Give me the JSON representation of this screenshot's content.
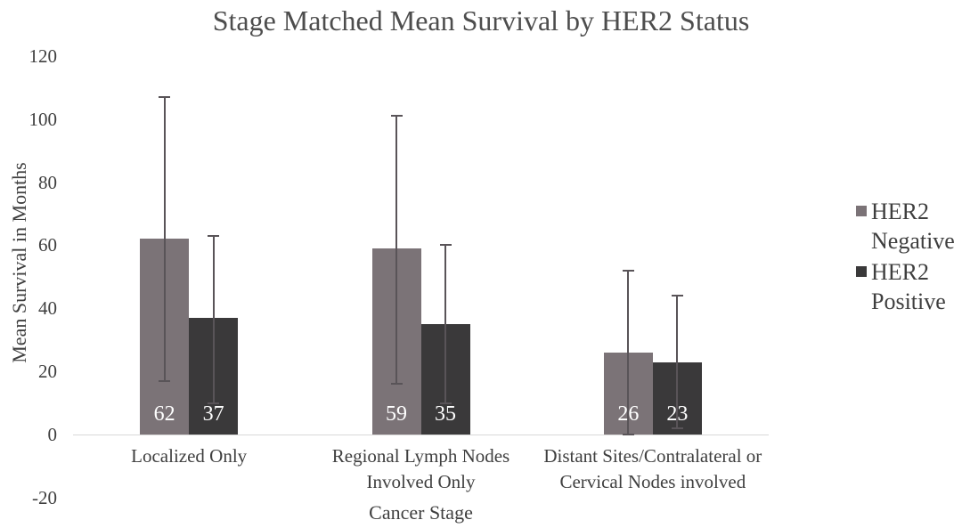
{
  "chart_data": {
    "type": "bar",
    "title": "Stage Matched Mean Survival by HER2 Status",
    "xlabel": "Cancer Stage",
    "ylabel": "Mean Survival in Months",
    "ylim": [
      -20,
      120
    ],
    "yticks": [
      120,
      100,
      80,
      60,
      40,
      20,
      0,
      -20
    ],
    "grid": false,
    "legend_position": "right",
    "show_data_labels": true,
    "categories": [
      "Localized Only",
      "Regional Lymph Nodes Involved Only",
      "Distant Sites/Contralateral or Cervical Nodes involved"
    ],
    "category_label_lines": [
      [
        "Localized Only"
      ],
      [
        "Regional Lymph Nodes",
        "Involved Only"
      ],
      [
        "Distant Sites/Contralateral or",
        "Cervical Nodes involved"
      ]
    ],
    "series": [
      {
        "name": "HER2 Negative",
        "legend_lines": [
          "HER2",
          "Negative"
        ],
        "color": "#7b7377",
        "values": [
          62,
          59,
          26
        ],
        "error_low": [
          17,
          16,
          0
        ],
        "error_high": [
          107,
          101,
          52
        ]
      },
      {
        "name": "HER2 Positive",
        "legend_lines": [
          "HER2",
          "Positive"
        ],
        "color": "#3a393a",
        "values": [
          37,
          35,
          23
        ],
        "error_low": [
          10,
          10,
          2
        ],
        "error_high": [
          63,
          60,
          44
        ]
      }
    ]
  },
  "colors": {
    "axis_line": "#d8d8d8",
    "error_bar": "#595458",
    "tick_text": "#3f3f3f",
    "title_text": "#4d4d4d",
    "data_label_text": "#ffffff"
  }
}
